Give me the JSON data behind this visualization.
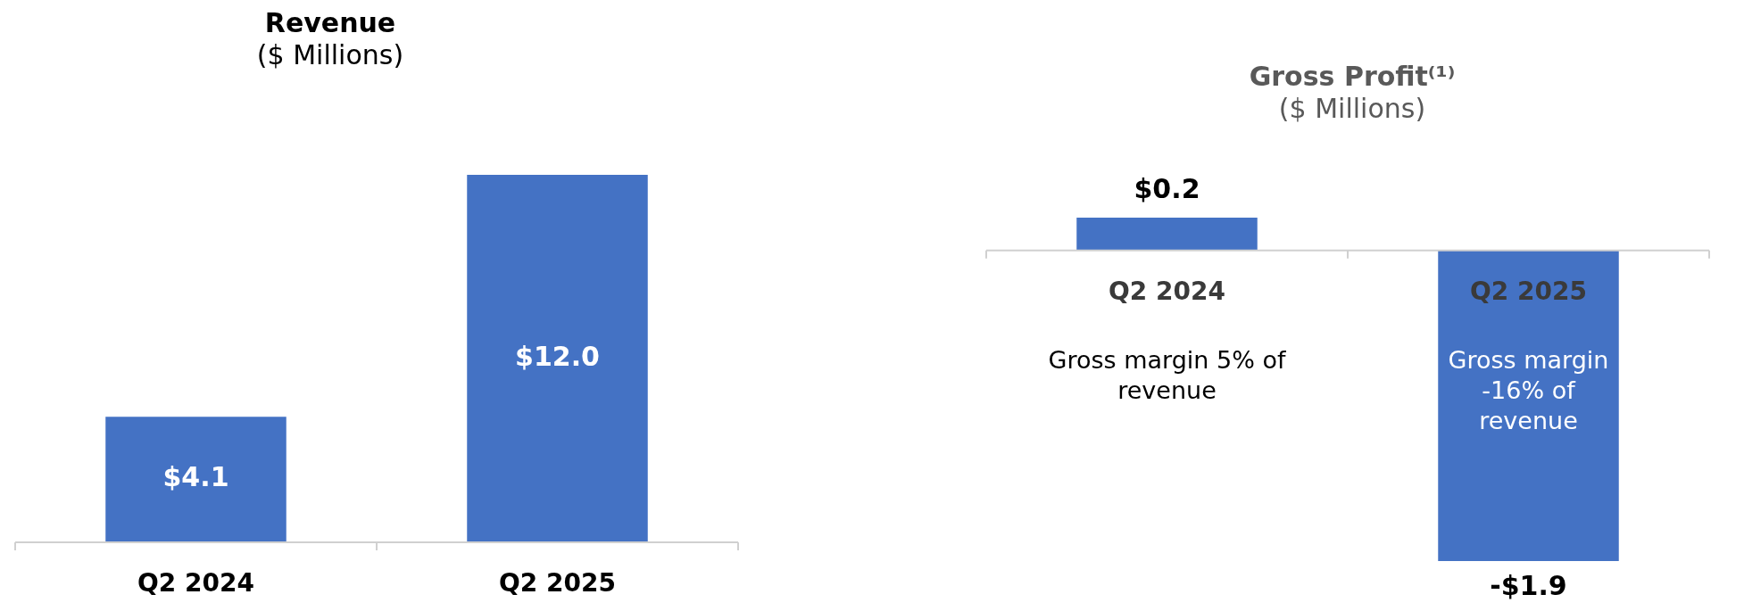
{
  "chart_data": [
    {
      "type": "bar",
      "title": "Revenue",
      "subtitle": "($ Millions)",
      "categories": [
        "Q2 2024",
        "Q2 2025"
      ],
      "series": [
        {
          "color": "#4472c4",
          "values": [
            4.1,
            12.0
          ],
          "value_labels": [
            "$4.1",
            "$12.0"
          ]
        }
      ],
      "legend": false
    },
    {
      "type": "bar",
      "title": "Gross Profit⁽¹⁾",
      "subtitle": "($ Millions)",
      "categories": [
        "Q2 2024",
        "Q2 2025"
      ],
      "series": [
        {
          "color": "#4472c4",
          "values": [
            0.2,
            -1.9
          ],
          "value_labels": [
            "$0.2",
            "-$1.9"
          ]
        }
      ],
      "legend": false,
      "annotations": [
        "Gross margin 5% of revenue",
        "Gross margin -16% of revenue"
      ]
    }
  ]
}
